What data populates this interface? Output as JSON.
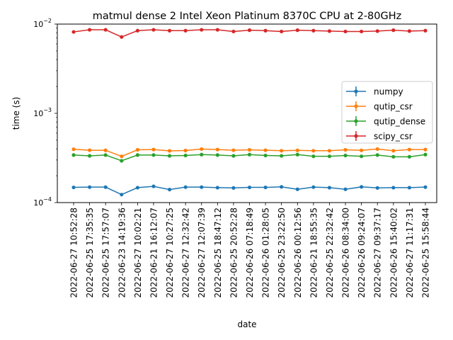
{
  "chart_data": {
    "type": "line",
    "title": "matmul dense 2 Intel Xeon Platinum 8370C CPU at 2-80GHz",
    "xlabel": "date",
    "ylabel": "time (s)",
    "yscale": "log",
    "ylim": [
      0.0001,
      0.01
    ],
    "y_ticks": [
      {
        "value": 0.0001,
        "base": "10",
        "exp": "−4"
      },
      {
        "value": 0.001,
        "base": "10",
        "exp": "−3"
      },
      {
        "value": 0.01,
        "base": "10",
        "exp": "−2"
      }
    ],
    "grid": false,
    "legend_position": "right",
    "categories": [
      "2022-06-27 10:52:28",
      "2022-06-25 17:35:35",
      "2022-06-25 17:57:07",
      "2022-06-23 14:19:36",
      "2022-06-27 10:02:21",
      "2022-06-21 16:12:07",
      "2022-06-27 10:27:25",
      "2022-06-27 12:32:42",
      "2022-06-27 12:07:39",
      "2022-06-25 18:47:12",
      "2022-06-25 20:52:28",
      "2022-06-26 07:18:49",
      "2022-06-26 01:28:05",
      "2022-06-25 23:22:50",
      "2022-06-26 00:12:56",
      "2022-06-21 18:55:35",
      "2022-06-25 22:32:42",
      "2022-06-26 08:34:00",
      "2022-06-26 09:24:07",
      "2022-06-27 09:37:17",
      "2022-06-26 15:40:02",
      "2022-06-27 11:17:31",
      "2022-06-25 15:58:44"
    ],
    "series": [
      {
        "name": "numpy",
        "color": "#1f77b4",
        "values": [
          0.000148,
          0.000149,
          0.000149,
          0.000123,
          0.000147,
          0.000152,
          0.00014,
          0.000149,
          0.000149,
          0.000147,
          0.000146,
          0.000148,
          0.000148,
          0.00015,
          0.000141,
          0.000149,
          0.000147,
          0.000141,
          0.00015,
          0.000146,
          0.000147,
          0.000147,
          0.000149
        ]
      },
      {
        "name": "qutip_csr",
        "color": "#ff7f0e",
        "values": [
          0.000396,
          0.000386,
          0.000385,
          0.00033,
          0.00039,
          0.000393,
          0.00038,
          0.000383,
          0.000398,
          0.000393,
          0.000386,
          0.00039,
          0.000386,
          0.000381,
          0.000385,
          0.000381,
          0.000381,
          0.00039,
          0.000385,
          0.000398,
          0.000381,
          0.000393,
          0.000393
        ]
      },
      {
        "name": "qutip_dense",
        "color": "#2ca02c",
        "values": [
          0.000341,
          0.000334,
          0.000341,
          0.000294,
          0.000341,
          0.000341,
          0.000334,
          0.000337,
          0.000345,
          0.000341,
          0.000334,
          0.000345,
          0.000337,
          0.000334,
          0.000345,
          0.00033,
          0.00033,
          0.000337,
          0.00033,
          0.000341,
          0.000326,
          0.000326,
          0.000345
        ]
      },
      {
        "name": "scipy_csr",
        "color": "#d62728",
        "values": [
          0.00817,
          0.00863,
          0.00863,
          0.00717,
          0.00844,
          0.00863,
          0.00844,
          0.00844,
          0.00863,
          0.00863,
          0.00826,
          0.00854,
          0.00844,
          0.00826,
          0.00854,
          0.00844,
          0.00835,
          0.00826,
          0.00826,
          0.00835,
          0.00854,
          0.00835,
          0.00844
        ]
      }
    ]
  }
}
